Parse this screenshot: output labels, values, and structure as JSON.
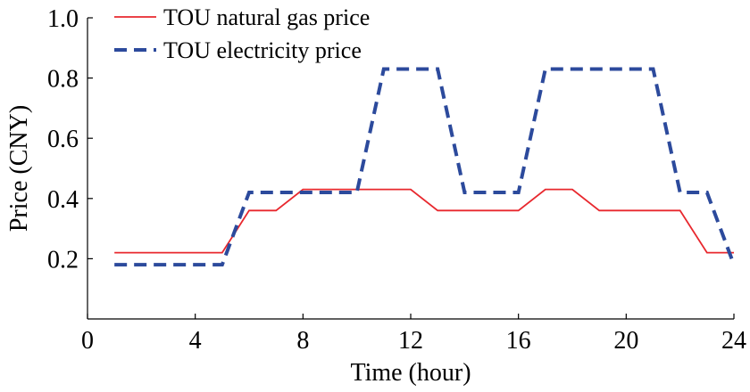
{
  "chart_data": {
    "type": "line",
    "title": "",
    "xlabel": "Time (hour)",
    "ylabel": "Price (CNY)",
    "xlim": [
      0,
      24
    ],
    "ylim": [
      0,
      1.0
    ],
    "xticks": [
      0,
      4,
      8,
      12,
      16,
      20,
      24
    ],
    "xtick_labels": [
      "0",
      "4",
      "8",
      "12",
      "16",
      "20",
      "24"
    ],
    "yticks": [
      0.2,
      0.4,
      0.6,
      0.8,
      1.0
    ],
    "ytick_labels": [
      "0.2",
      "0.4",
      "0.6",
      "0.8",
      "1.0"
    ],
    "grid": false,
    "legend_position": "top-left",
    "series": [
      {
        "name": "TOU natural gas price",
        "style": "solid",
        "color": "#e8282e",
        "x": [
          1,
          5,
          6,
          7,
          8,
          12,
          13,
          16,
          17,
          18,
          19,
          22,
          23,
          24
        ],
        "y": [
          0.22,
          0.22,
          0.36,
          0.36,
          0.43,
          0.43,
          0.36,
          0.36,
          0.43,
          0.43,
          0.36,
          0.36,
          0.22,
          0.22
        ]
      },
      {
        "name": "TOU electricity price",
        "style": "dashed",
        "color": "#2c4a9c",
        "x": [
          1,
          5,
          6,
          10,
          11,
          13,
          14,
          16,
          17,
          21,
          22,
          23,
          24
        ],
        "y": [
          0.18,
          0.18,
          0.42,
          0.42,
          0.83,
          0.83,
          0.42,
          0.42,
          0.83,
          0.83,
          0.42,
          0.42,
          0.18
        ]
      }
    ]
  }
}
